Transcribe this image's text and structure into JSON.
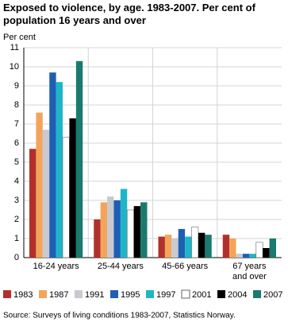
{
  "chart_data": {
    "type": "bar",
    "title": "Exposed to violence, by age. 1983-2007. Per cent of population 16 years and over",
    "y_label": "Per cent",
    "categories": [
      "16-24 years",
      "25-44 years",
      "45-66 years",
      "67 years and over"
    ],
    "series": [
      {
        "name": "1983",
        "color": "#b2302b",
        "values": [
          5.7,
          2.0,
          1.1,
          1.2
        ]
      },
      {
        "name": "1987",
        "color": "#f2a55a",
        "values": [
          7.6,
          2.9,
          1.2,
          1.0
        ]
      },
      {
        "name": "1991",
        "color": "#c9c9d1",
        "values": [
          6.7,
          3.2,
          1.0,
          0.2
        ]
      },
      {
        "name": "1995",
        "color": "#1e5fb4",
        "values": [
          9.7,
          3.0,
          1.5,
          0.2
        ]
      },
      {
        "name": "1997",
        "color": "#1fb5c9",
        "values": [
          9.2,
          3.6,
          1.1,
          0.2
        ]
      },
      {
        "name": "2001",
        "color": "#ffffff",
        "values": [
          6.3,
          2.5,
          1.6,
          0.8
        ]
      },
      {
        "name": "2004",
        "color": "#000000",
        "values": [
          7.3,
          2.7,
          1.3,
          0.5
        ]
      },
      {
        "name": "2007",
        "color": "#1a7a6e",
        "values": [
          10.3,
          2.9,
          1.2,
          1.0
        ]
      }
    ],
    "ylim": [
      0,
      11
    ],
    "yticks": [
      0,
      1,
      2,
      3,
      4,
      5,
      6,
      7,
      8,
      9,
      10,
      11
    ],
    "grid": true,
    "source": "Source: Surveys of living conditions 1983-2007, Statistics Norway."
  }
}
